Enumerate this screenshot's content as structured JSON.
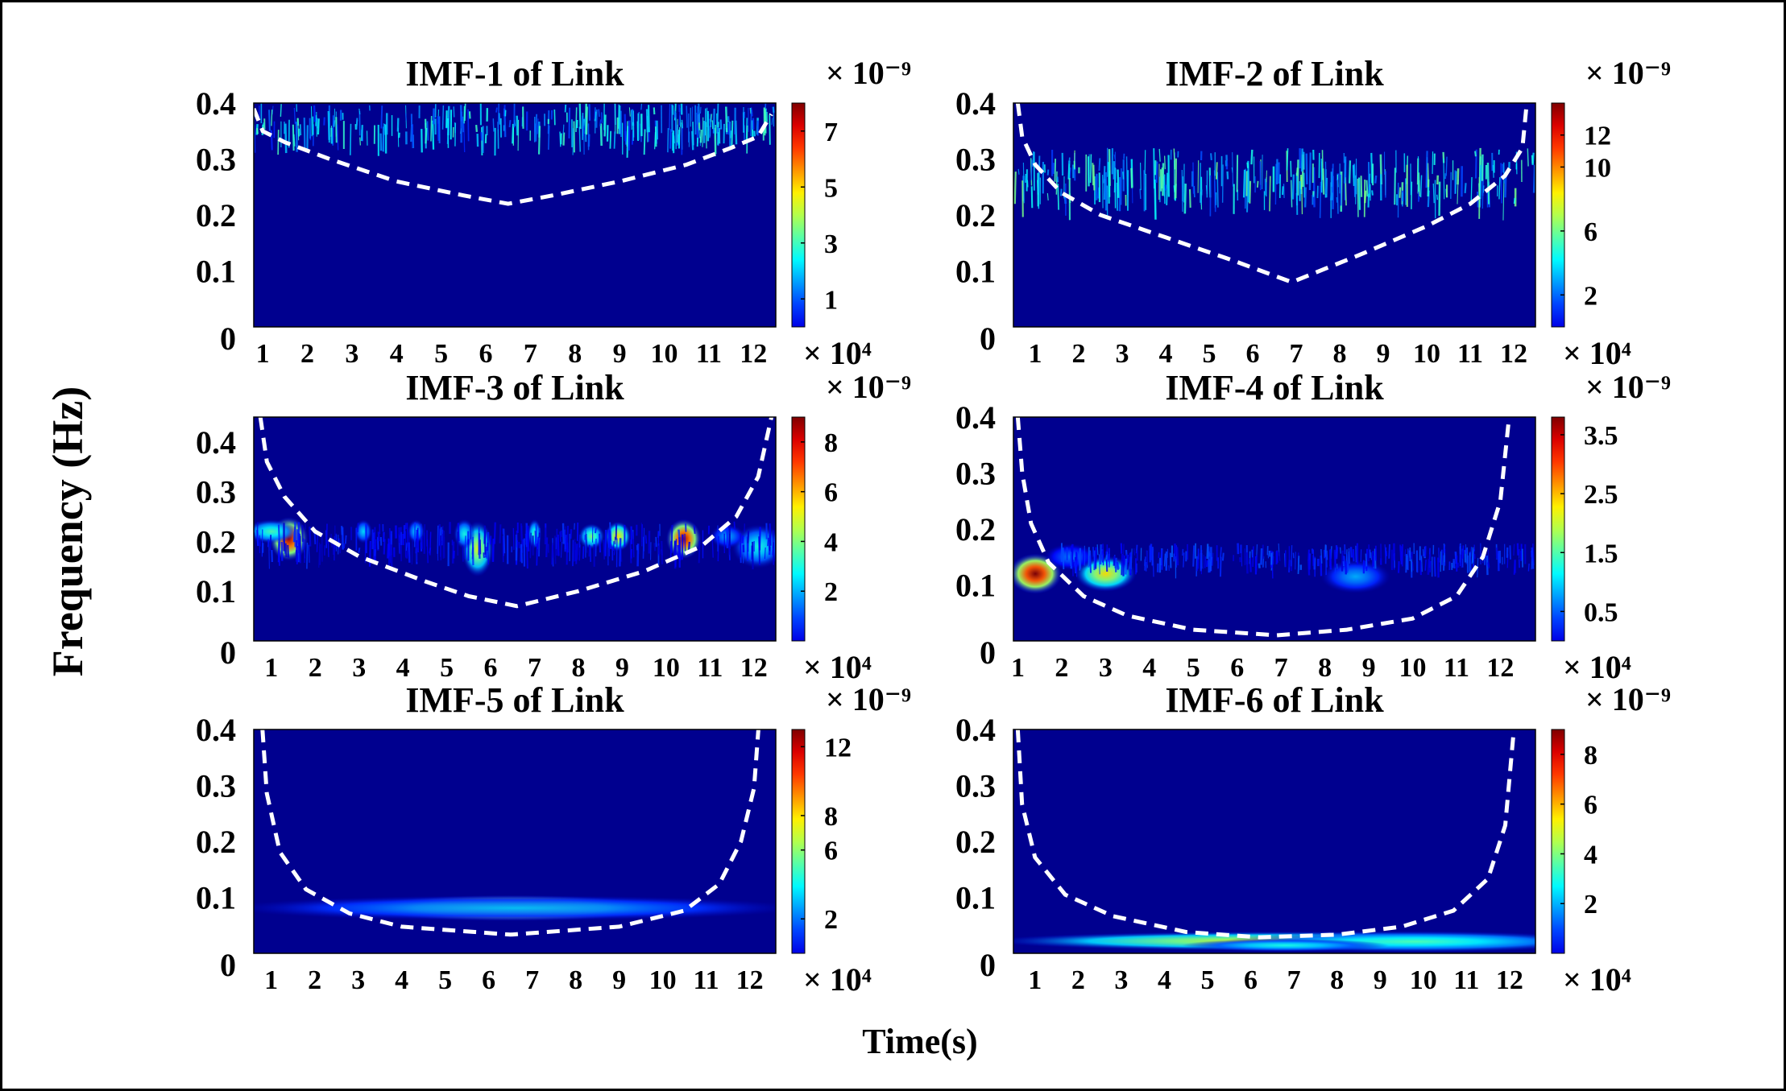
{
  "figure": {
    "ylabel": "Frequency (Hz)",
    "xlabel": "Time(s)",
    "colors": {
      "background": "#ffffff",
      "frame": "#000000",
      "cone": "#ffffff",
      "field": "#00008f"
    }
  },
  "chart_data": [
    {
      "type": "heatmap",
      "title": "IMF-1 of Link",
      "yticks": [
        "0",
        "0.1",
        "0.2",
        "0.3",
        "0.4"
      ],
      "ylim": [
        0,
        0.4
      ],
      "xticks": [
        "1",
        "2",
        "3",
        "4",
        "5",
        "6",
        "7",
        "8",
        "9",
        "10",
        "11",
        "12"
      ],
      "xlim": [
        0.8,
        12.5
      ],
      "x_exponent": "× 10⁴",
      "cbar_exponent": "× 10⁻⁹",
      "cbar_ticks": [
        "1",
        "3",
        "5",
        "7"
      ],
      "clim": [
        0,
        8
      ],
      "cone": [
        [
          0.8,
          0.39
        ],
        [
          1.0,
          0.35
        ],
        [
          1.5,
          0.33
        ],
        [
          2.5,
          0.3
        ],
        [
          4.0,
          0.26
        ],
        [
          5.5,
          0.235
        ],
        [
          6.5,
          0.22
        ],
        [
          7.5,
          0.235
        ],
        [
          9.0,
          0.26
        ],
        [
          10.5,
          0.29
        ],
        [
          11.5,
          0.32
        ],
        [
          12.1,
          0.34
        ],
        [
          12.4,
          0.38
        ]
      ],
      "features": [
        {
          "kind": "noise",
          "t0": 0.8,
          "t1": 12.5,
          "f0": 0.33,
          "f1": 0.4,
          "peak": 0.45
        }
      ]
    },
    {
      "type": "heatmap",
      "title": "IMF-2 of Link",
      "yticks": [
        "0",
        "0.1",
        "0.2",
        "0.3",
        "0.4"
      ],
      "ylim": [
        0,
        0.4
      ],
      "xticks": [
        "1",
        "2",
        "3",
        "4",
        "5",
        "6",
        "7",
        "8",
        "9",
        "10",
        "11",
        "12"
      ],
      "xlim": [
        0.5,
        12.5
      ],
      "x_exponent": "× 10⁴",
      "cbar_exponent": "× 10⁻⁹",
      "cbar_ticks": [
        "2",
        "6",
        "10",
        "12"
      ],
      "clim": [
        0,
        14
      ],
      "cone": [
        [
          0.6,
          0.4
        ],
        [
          0.7,
          0.34
        ],
        [
          1.0,
          0.29
        ],
        [
          1.6,
          0.24
        ],
        [
          2.5,
          0.2
        ],
        [
          4.0,
          0.16
        ],
        [
          5.5,
          0.12
        ],
        [
          6.9,
          0.08
        ],
        [
          8.5,
          0.13
        ],
        [
          10.0,
          0.18
        ],
        [
          11.0,
          0.22
        ],
        [
          11.8,
          0.27
        ],
        [
          12.2,
          0.32
        ],
        [
          12.3,
          0.4
        ]
      ],
      "features": [
        {
          "kind": "noise",
          "t0": 0.5,
          "t1": 12.5,
          "f0": 0.225,
          "f1": 0.32,
          "peak": 0.5
        }
      ]
    },
    {
      "type": "heatmap",
      "title": "IMF-3 of Link",
      "yticks": [
        "0",
        "0.1",
        "0.2",
        "0.3",
        "0.4"
      ],
      "ylim": [
        0,
        0.45
      ],
      "xticks": [
        "1",
        "2",
        "3",
        "4",
        "5",
        "6",
        "7",
        "8",
        "9",
        "10",
        "11",
        "12"
      ],
      "xlim": [
        0.6,
        12.5
      ],
      "x_exponent": "× 10⁴",
      "cbar_exponent": "× 10⁻⁹",
      "cbar_ticks": [
        "2",
        "4",
        "6",
        "8"
      ],
      "clim": [
        0,
        9
      ],
      "cone": [
        [
          0.75,
          0.45
        ],
        [
          0.9,
          0.36
        ],
        [
          1.3,
          0.29
        ],
        [
          2.0,
          0.22
        ],
        [
          3.0,
          0.17
        ],
        [
          4.5,
          0.12
        ],
        [
          5.5,
          0.09
        ],
        [
          6.6,
          0.07
        ],
        [
          8.0,
          0.1
        ],
        [
          9.5,
          0.14
        ],
        [
          10.8,
          0.19
        ],
        [
          11.6,
          0.25
        ],
        [
          12.1,
          0.33
        ],
        [
          12.4,
          0.45
        ]
      ],
      "features": [
        {
          "kind": "blob",
          "t": 1.4,
          "f": 0.205,
          "st": 0.22,
          "sf": 0.022,
          "amp": 0.95
        },
        {
          "kind": "blob",
          "t": 1.0,
          "f": 0.22,
          "st": 0.3,
          "sf": 0.012,
          "amp": 0.45
        },
        {
          "kind": "blob",
          "t": 5.7,
          "f": 0.185,
          "st": 0.18,
          "sf": 0.028,
          "amp": 0.6
        },
        {
          "kind": "blob",
          "t": 5.4,
          "f": 0.215,
          "st": 0.12,
          "sf": 0.015,
          "amp": 0.4
        },
        {
          "kind": "blob",
          "t": 8.9,
          "f": 0.21,
          "st": 0.15,
          "sf": 0.015,
          "amp": 0.65
        },
        {
          "kind": "blob",
          "t": 8.3,
          "f": 0.21,
          "st": 0.15,
          "sf": 0.013,
          "amp": 0.5
        },
        {
          "kind": "blob",
          "t": 10.4,
          "f": 0.205,
          "st": 0.2,
          "sf": 0.02,
          "amp": 0.95
        },
        {
          "kind": "blob",
          "t": 7.0,
          "f": 0.215,
          "st": 0.08,
          "sf": 0.015,
          "amp": 0.45
        },
        {
          "kind": "blob",
          "t": 3.1,
          "f": 0.22,
          "st": 0.1,
          "sf": 0.012,
          "amp": 0.35
        },
        {
          "kind": "blob",
          "t": 4.3,
          "f": 0.22,
          "st": 0.1,
          "sf": 0.012,
          "amp": 0.35
        },
        {
          "kind": "blob",
          "t": 12.1,
          "f": 0.19,
          "st": 0.3,
          "sf": 0.022,
          "amp": 0.4
        },
        {
          "kind": "blob",
          "t": 11.4,
          "f": 0.21,
          "st": 0.2,
          "sf": 0.012,
          "amp": 0.3
        },
        {
          "kind": "noise",
          "t0": 0.6,
          "t1": 12.5,
          "f0": 0.17,
          "f1": 0.24,
          "peak": 0.18
        }
      ]
    },
    {
      "type": "heatmap",
      "title": "IMF-4 of Link",
      "yticks": [
        "0",
        "0.1",
        "0.2",
        "0.3",
        "0.4"
      ],
      "ylim": [
        0,
        0.4
      ],
      "xticks": [
        "1",
        "2",
        "3",
        "4",
        "5",
        "6",
        "7",
        "8",
        "9",
        "10",
        "11",
        "12"
      ],
      "xlim": [
        0.9,
        12.8
      ],
      "x_exponent": "× 10⁴",
      "cbar_exponent": "× 10⁻⁹",
      "cbar_ticks": [
        "0.5",
        "1.5",
        "2.5",
        "3.5"
      ],
      "clim": [
        0,
        3.8
      ],
      "cone": [
        [
          1.0,
          0.4
        ],
        [
          1.1,
          0.3
        ],
        [
          1.3,
          0.21
        ],
        [
          1.7,
          0.14
        ],
        [
          2.5,
          0.08
        ],
        [
          3.5,
          0.045
        ],
        [
          5.0,
          0.02
        ],
        [
          6.9,
          0.01
        ],
        [
          8.5,
          0.02
        ],
        [
          10.0,
          0.04
        ],
        [
          11.0,
          0.08
        ],
        [
          11.6,
          0.15
        ],
        [
          12.0,
          0.25
        ],
        [
          12.2,
          0.4
        ]
      ],
      "features": [
        {
          "kind": "blob",
          "t": 1.4,
          "f": 0.12,
          "st": 0.3,
          "sf": 0.018,
          "amp": 1.0
        },
        {
          "kind": "blob",
          "t": 3.0,
          "f": 0.12,
          "st": 0.35,
          "sf": 0.016,
          "amp": 0.65
        },
        {
          "kind": "blob",
          "t": 2.2,
          "f": 0.15,
          "st": 0.3,
          "sf": 0.012,
          "amp": 0.25
        },
        {
          "kind": "blob",
          "t": 8.7,
          "f": 0.115,
          "st": 0.4,
          "sf": 0.015,
          "amp": 0.3
        },
        {
          "kind": "noise",
          "t0": 2.0,
          "t1": 12.8,
          "f0": 0.13,
          "f1": 0.175,
          "peak": 0.22
        }
      ]
    },
    {
      "type": "heatmap",
      "title": "IMF-5 of Link",
      "yticks": [
        "0",
        "0.1",
        "0.2",
        "0.3",
        "0.4"
      ],
      "ylim": [
        0,
        0.42
      ],
      "xticks": [
        "1",
        "2",
        "3",
        "4",
        "5",
        "6",
        "7",
        "8",
        "9",
        "10",
        "11",
        "12"
      ],
      "xlim": [
        0.6,
        12.6
      ],
      "x_exponent": "× 10⁴",
      "cbar_exponent": "× 10⁻⁹",
      "cbar_ticks": [
        "2",
        "6",
        "8",
        "12"
      ],
      "clim": [
        0,
        13
      ],
      "cone": [
        [
          0.8,
          0.42
        ],
        [
          0.9,
          0.3
        ],
        [
          1.2,
          0.19
        ],
        [
          1.8,
          0.12
        ],
        [
          2.8,
          0.075
        ],
        [
          4.0,
          0.05
        ],
        [
          6.5,
          0.035
        ],
        [
          9.0,
          0.05
        ],
        [
          10.5,
          0.08
        ],
        [
          11.3,
          0.13
        ],
        [
          11.8,
          0.21
        ],
        [
          12.1,
          0.31
        ],
        [
          12.2,
          0.42
        ]
      ],
      "features": [
        {
          "kind": "blob",
          "t": 6.5,
          "f": 0.085,
          "st": 1.7,
          "sf": 0.012,
          "amp": 1.0
        },
        {
          "kind": "band",
          "t0": 0.6,
          "t1": 12.6,
          "f": 0.085,
          "sf": 0.012,
          "amp": 0.32
        }
      ]
    },
    {
      "type": "heatmap",
      "title": "IMF-6 of Link",
      "yticks": [
        "0",
        "0.1",
        "0.2",
        "0.3",
        "0.4"
      ],
      "ylim": [
        0,
        0.42
      ],
      "xticks": [
        "1",
        "2",
        "3",
        "4",
        "5",
        "6",
        "7",
        "8",
        "9",
        "10",
        "11",
        "12"
      ],
      "xlim": [
        0.5,
        12.6
      ],
      "x_exponent": "× 10⁴",
      "cbar_exponent": "× 10⁻⁹",
      "cbar_ticks": [
        "2",
        "4",
        "6",
        "8"
      ],
      "clim": [
        0,
        9
      ],
      "cone": [
        [
          0.6,
          0.42
        ],
        [
          0.7,
          0.28
        ],
        [
          1.0,
          0.18
        ],
        [
          1.7,
          0.11
        ],
        [
          2.8,
          0.07
        ],
        [
          4.5,
          0.04
        ],
        [
          6.2,
          0.03
        ],
        [
          8.0,
          0.035
        ],
        [
          9.5,
          0.05
        ],
        [
          10.7,
          0.08
        ],
        [
          11.5,
          0.14
        ],
        [
          11.9,
          0.24
        ],
        [
          12.1,
          0.42
        ]
      ],
      "features": [
        {
          "kind": "band",
          "t0": 0.5,
          "t1": 12.6,
          "f": 0.023,
          "sf": 0.009,
          "amp": 0.62
        },
        {
          "kind": "blob",
          "t": 9.8,
          "f": 0.022,
          "st": 2.2,
          "sf": 0.01,
          "amp": 0.45
        },
        {
          "kind": "blob",
          "t": 6.8,
          "f": 0.015,
          "st": 1.2,
          "sf": 0.006,
          "amp": 0.4
        }
      ]
    }
  ]
}
